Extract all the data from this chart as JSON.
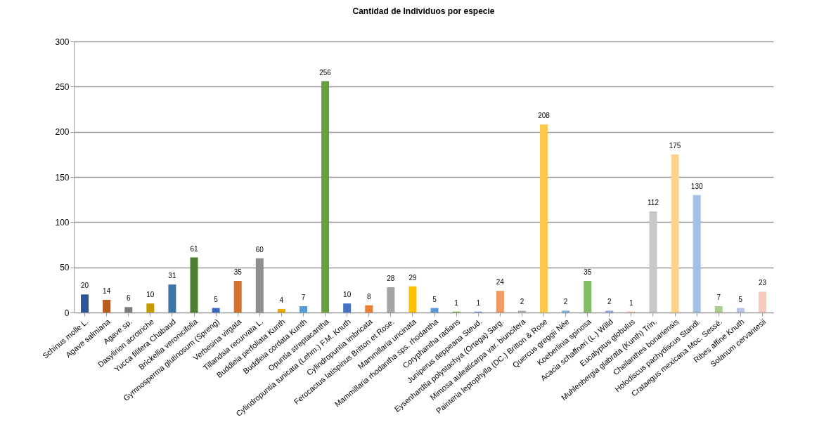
{
  "chart_data": {
    "type": "bar",
    "title": "Cantidad de Individuos por especie",
    "categories": [
      "Schinus molle L.",
      "Agave salmiana",
      "Agave sp.",
      "Dasylirion acrotriche",
      "Yucca filifera Chabaud",
      "Brickellia veronicifolia",
      "Gymnosperma glutinosum (Spreng)",
      "Verbesina virgata",
      "Tillandsia recurvata L.",
      "Buddleia perfoliata Kunth",
      "Buddleia cordata Kunth",
      "Opuntia streptacantha",
      "Cylindropuntia tunicata (Lehm.) F.M. Knuth",
      "Cylindropuntia imbricata",
      "Ferocactus latispinus Britton et Rose.",
      "Mammillaria uncinata",
      "Mammillaria  rhodantha sps. rhodantha",
      "Coryphantha radians",
      "Juniperus deppeana Steud.",
      "Eysenhardtia polystachya (Ortega) Sarg.",
      "Mimosa auleaticarpa var. biuncifera",
      "Painteria leptophylla (DC.) Britton & Rose",
      "Quercus greggii Née",
      "Koeberlinia spinosa",
      "Acacia schaffneri (L.) Willd",
      "Eucalyptus globulus",
      "Muhlenbergia glabrata (Kunth) Trin.",
      "Cheilanthes bonariensis",
      "Holodiscus pachydiscus Standl.",
      "Crataegus mexicana Moc. Sessé.",
      "Ribes affine Knuth",
      "Solanum cervantesii"
    ],
    "values": [
      20,
      14,
      6,
      10,
      31,
      61,
      5,
      35,
      60,
      4,
      7,
      256,
      10,
      8,
      28,
      29,
      5,
      1,
      1,
      24,
      2,
      208,
      2,
      35,
      2,
      1,
      112,
      175,
      130,
      7,
      5,
      23
    ],
    "colors": [
      "#2e5597",
      "#b65a1d",
      "#7b7b7b",
      "#c49a00",
      "#3e75a6",
      "#4e7f2f",
      "#3b69c0",
      "#d6702d",
      "#8f8f8f",
      "#e6ac00",
      "#5b9bd5",
      "#66a03e",
      "#4472c4",
      "#ed7d31",
      "#a5a5a5",
      "#ffc000",
      "#5b9bd5",
      "#70ad47",
      "#6f8fd1",
      "#f19a63",
      "#b0b0b0",
      "#ffc84f",
      "#7aaede",
      "#84bb66",
      "#8ea4d8",
      "#f2aa8e",
      "#c8c8c8",
      "#ffd48a",
      "#a3bfe3",
      "#a9d08e",
      "#b4c5e7",
      "#f7cbbb"
    ],
    "ylim": [
      0,
      300
    ],
    "yticks": [
      0,
      50,
      100,
      150,
      200,
      250,
      300
    ],
    "grid": "y",
    "data_labels": true,
    "legend": false
  }
}
